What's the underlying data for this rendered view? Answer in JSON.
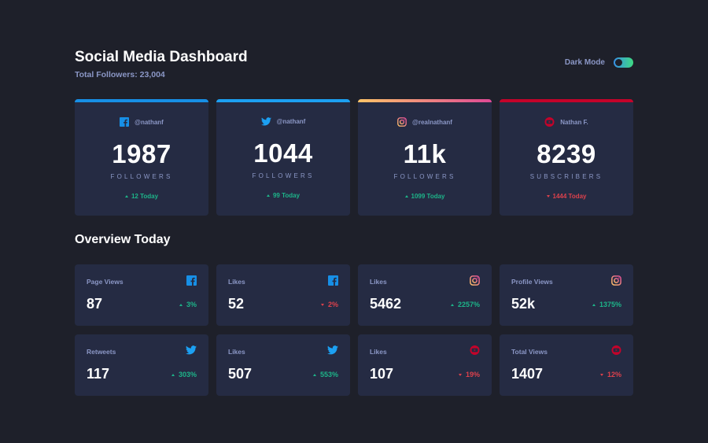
{
  "header": {
    "title": "Social Media Dashboard",
    "subtitle": "Total Followers: 23,004",
    "toggle_label": "Dark Mode",
    "dark_mode": true
  },
  "colors": {
    "facebook": "#178fe6",
    "twitter": "#1ca0f2",
    "instagram_start": "#fdc468",
    "instagram_end": "#df4996",
    "youtube": "#c4032a",
    "up": "#1db489",
    "down": "#dc414c"
  },
  "cards": [
    {
      "platform": "facebook",
      "icon": "facebook-icon",
      "handle": "@nathanf",
      "count": "1987",
      "unit": "FOLLOWERS",
      "today": "12 Today",
      "trend": "up"
    },
    {
      "platform": "twitter",
      "icon": "twitter-icon",
      "handle": "@nathanf",
      "count": "1044",
      "unit": "FOLLOWERS",
      "today": "99 Today",
      "trend": "up"
    },
    {
      "platform": "instagram",
      "icon": "instagram-icon",
      "handle": "@realnathanf",
      "count": "11k",
      "unit": "FOLLOWERS",
      "today": "1099 Today",
      "trend": "up"
    },
    {
      "platform": "youtube",
      "icon": "youtube-icon",
      "handle": "Nathan F.",
      "count": "8239",
      "unit": "SUBSCRIBERS",
      "today": "1444 Today",
      "trend": "down"
    }
  ],
  "overview": {
    "title": "Overview Today",
    "items": [
      {
        "label": "Page Views",
        "icon": "facebook-icon",
        "value": "87",
        "delta": "3%",
        "trend": "up"
      },
      {
        "label": "Likes",
        "icon": "facebook-icon",
        "value": "52",
        "delta": "2%",
        "trend": "down"
      },
      {
        "label": "Likes",
        "icon": "instagram-icon",
        "value": "5462",
        "delta": "2257%",
        "trend": "up"
      },
      {
        "label": "Profile Views",
        "icon": "instagram-icon",
        "value": "52k",
        "delta": "1375%",
        "trend": "up"
      },
      {
        "label": "Retweets",
        "icon": "twitter-icon",
        "value": "117",
        "delta": "303%",
        "trend": "up"
      },
      {
        "label": "Likes",
        "icon": "twitter-icon",
        "value": "507",
        "delta": "553%",
        "trend": "up"
      },
      {
        "label": "Likes",
        "icon": "youtube-icon",
        "value": "107",
        "delta": "19%",
        "trend": "down"
      },
      {
        "label": "Total Views",
        "icon": "youtube-icon",
        "value": "1407",
        "delta": "12%",
        "trend": "down"
      }
    ]
  }
}
